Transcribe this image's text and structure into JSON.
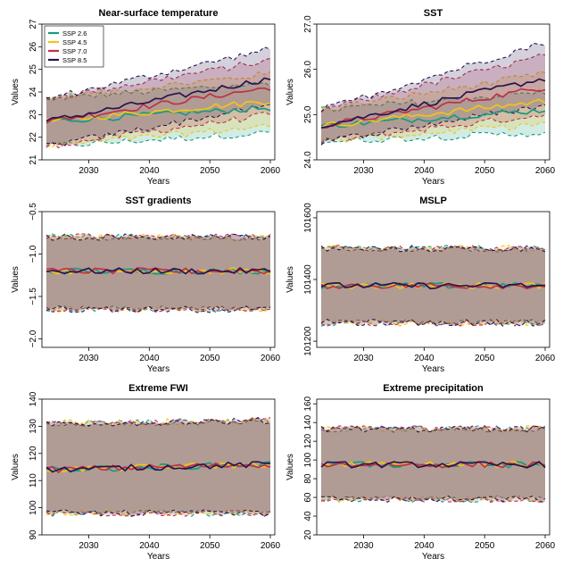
{
  "figure": {
    "legend": {
      "placement": "top-left of first panel",
      "entries": [
        {
          "label": "SSP 2.6",
          "color": "#1a9a7c"
        },
        {
          "label": "SSP 4.5",
          "color": "#f0c419"
        },
        {
          "label": "SSP 7.0",
          "color": "#c0304a"
        },
        {
          "label": "SSP 8.5",
          "color": "#2a1450"
        }
      ]
    }
  },
  "chart_data": [
    {
      "type": "line",
      "title": "Near-surface temperature",
      "xlabel": "Years",
      "ylabel": "Values",
      "xlim": [
        2023,
        2060
      ],
      "ylim": [
        21,
        27
      ],
      "xticks": [
        2030,
        2040,
        2050,
        2060
      ],
      "yticks": [
        21,
        22,
        23,
        24,
        25,
        26,
        27
      ],
      "series": [
        {
          "name": "SSP 2.6",
          "mean_start": 22.7,
          "mean_end": 23.3,
          "band_lower_start": 21.6,
          "band_lower_end": 22.2,
          "band_upper_start": 23.7,
          "band_upper_end": 24.4
        },
        {
          "name": "SSP 4.5",
          "mean_start": 22.7,
          "mean_end": 23.6,
          "band_lower_start": 21.6,
          "band_lower_end": 22.5,
          "band_upper_start": 23.7,
          "band_upper_end": 24.8
        },
        {
          "name": "SSP 7.0",
          "mean_start": 22.7,
          "mean_end": 24.2,
          "band_lower_start": 21.6,
          "band_lower_end": 23.0,
          "band_upper_start": 23.7,
          "band_upper_end": 25.4
        },
        {
          "name": "SSP 8.5",
          "mean_start": 22.7,
          "mean_end": 24.6,
          "band_lower_start": 21.6,
          "band_lower_end": 23.4,
          "band_upper_start": 23.7,
          "band_upper_end": 25.9
        }
      ]
    },
    {
      "type": "line",
      "title": "SST",
      "xlabel": "Years",
      "ylabel": "Values",
      "xlim": [
        2023,
        2060
      ],
      "ylim": [
        24.0,
        27.0
      ],
      "xticks": [
        2030,
        2040,
        2050,
        2060
      ],
      "yticks": [
        24.0,
        25.0,
        26.0,
        27.0
      ],
      "series": [
        {
          "name": "SSP 2.6",
          "mean_start": 24.75,
          "mean_end": 25.1,
          "band_lower_start": 24.4,
          "band_lower_end": 24.6,
          "band_upper_start": 25.1,
          "band_upper_end": 25.5
        },
        {
          "name": "SSP 4.5",
          "mean_start": 24.75,
          "mean_end": 25.3,
          "band_lower_start": 24.4,
          "band_lower_end": 24.8,
          "band_upper_start": 25.1,
          "band_upper_end": 25.9
        },
        {
          "name": "SSP 7.0",
          "mean_start": 24.75,
          "mean_end": 25.6,
          "band_lower_start": 24.4,
          "band_lower_end": 25.0,
          "band_upper_start": 25.1,
          "band_upper_end": 26.3
        },
        {
          "name": "SSP 8.5",
          "mean_start": 24.75,
          "mean_end": 25.8,
          "band_lower_start": 24.4,
          "band_lower_end": 25.2,
          "band_upper_start": 25.1,
          "band_upper_end": 26.6
        }
      ]
    },
    {
      "type": "line",
      "title": "SST gradients",
      "xlabel": "Years",
      "ylabel": "Values",
      "xlim": [
        2023,
        2060
      ],
      "ylim": [
        -2.1,
        -0.5
      ],
      "xticks": [
        2030,
        2040,
        2050,
        2060
      ],
      "yticks": [
        -2.0,
        -1.5,
        -1.0,
        -0.5
      ],
      "yticklabels": [
        "−2.0",
        "−1.5",
        "−1.0",
        "−0.5"
      ],
      "series": [
        {
          "name": "SSP 2.6",
          "mean_start": -1.2,
          "mean_end": -1.2,
          "band_lower_start": -1.65,
          "band_lower_end": -1.65,
          "band_upper_start": -0.8,
          "band_upper_end": -0.8
        },
        {
          "name": "SSP 4.5",
          "mean_start": -1.2,
          "mean_end": -1.2,
          "band_lower_start": -1.65,
          "band_lower_end": -1.65,
          "band_upper_start": -0.8,
          "band_upper_end": -0.8
        },
        {
          "name": "SSP 7.0",
          "mean_start": -1.2,
          "mean_end": -1.2,
          "band_lower_start": -1.65,
          "band_lower_end": -1.65,
          "band_upper_start": -0.8,
          "band_upper_end": -0.8
        },
        {
          "name": "SSP 8.5",
          "mean_start": -1.2,
          "mean_end": -1.2,
          "band_lower_start": -1.65,
          "band_lower_end": -1.65,
          "band_upper_start": -0.8,
          "band_upper_end": -0.8
        }
      ]
    },
    {
      "type": "line",
      "title": "MSLP",
      "xlabel": "Years",
      "ylabel": "Values",
      "xlim": [
        2023,
        2060
      ],
      "ylim": [
        101180,
        101620
      ],
      "xticks": [
        2030,
        2040,
        2050,
        2060
      ],
      "yticks": [
        101200,
        101400,
        101600
      ],
      "series": [
        {
          "name": "SSP 2.6",
          "mean_start": 101380,
          "mean_end": 101380,
          "band_lower_start": 101260,
          "band_lower_end": 101260,
          "band_upper_start": 101500,
          "band_upper_end": 101500
        },
        {
          "name": "SSP 4.5",
          "mean_start": 101380,
          "mean_end": 101380,
          "band_lower_start": 101260,
          "band_lower_end": 101260,
          "band_upper_start": 101500,
          "band_upper_end": 101500
        },
        {
          "name": "SSP 7.0",
          "mean_start": 101380,
          "mean_end": 101380,
          "band_lower_start": 101260,
          "band_lower_end": 101260,
          "band_upper_start": 101500,
          "band_upper_end": 101500
        },
        {
          "name": "SSP 8.5",
          "mean_start": 101380,
          "mean_end": 101380,
          "band_lower_start": 101260,
          "band_lower_end": 101260,
          "band_upper_start": 101500,
          "band_upper_end": 101500
        }
      ]
    },
    {
      "type": "line",
      "title": "Extreme FWI",
      "xlabel": "Years",
      "ylabel": "Values",
      "xlim": [
        2023,
        2060
      ],
      "ylim": [
        90,
        140
      ],
      "xticks": [
        2030,
        2040,
        2050,
        2060
      ],
      "yticks": [
        90,
        100,
        110,
        120,
        130,
        140
      ],
      "series": [
        {
          "name": "SSP 2.6",
          "mean_start": 114,
          "mean_end": 116,
          "band_lower_start": 98,
          "band_lower_end": 98,
          "band_upper_start": 131,
          "band_upper_end": 132
        },
        {
          "name": "SSP 4.5",
          "mean_start": 114,
          "mean_end": 116,
          "band_lower_start": 98,
          "band_lower_end": 98,
          "band_upper_start": 131,
          "band_upper_end": 132
        },
        {
          "name": "SSP 7.0",
          "mean_start": 114,
          "mean_end": 116,
          "band_lower_start": 98,
          "band_lower_end": 98,
          "band_upper_start": 131,
          "band_upper_end": 132
        },
        {
          "name": "SSP 8.5",
          "mean_start": 114,
          "mean_end": 116,
          "band_lower_start": 98,
          "band_lower_end": 98,
          "band_upper_start": 131,
          "band_upper_end": 132
        }
      ]
    },
    {
      "type": "line",
      "title": "Extreme precipitation",
      "xlabel": "Years",
      "ylabel": "Values",
      "xlim": [
        2023,
        2060
      ],
      "ylim": [
        20,
        165
      ],
      "xticks": [
        2030,
        2040,
        2050,
        2060
      ],
      "yticks": [
        20,
        40,
        60,
        80,
        100,
        120,
        140,
        160
      ],
      "series": [
        {
          "name": "SSP 2.6",
          "mean_start": 95,
          "mean_end": 95,
          "band_lower_start": 58,
          "band_lower_end": 58,
          "band_upper_start": 133,
          "band_upper_end": 133
        },
        {
          "name": "SSP 4.5",
          "mean_start": 95,
          "mean_end": 95,
          "band_lower_start": 58,
          "band_lower_end": 58,
          "band_upper_start": 133,
          "band_upper_end": 133
        },
        {
          "name": "SSP 7.0",
          "mean_start": 95,
          "mean_end": 95,
          "band_lower_start": 58,
          "band_lower_end": 58,
          "band_upper_start": 133,
          "band_upper_end": 133
        },
        {
          "name": "SSP 8.5",
          "mean_start": 95,
          "mean_end": 95,
          "band_lower_start": 58,
          "band_lower_end": 58,
          "band_upper_start": 133,
          "band_upper_end": 133
        }
      ]
    }
  ]
}
